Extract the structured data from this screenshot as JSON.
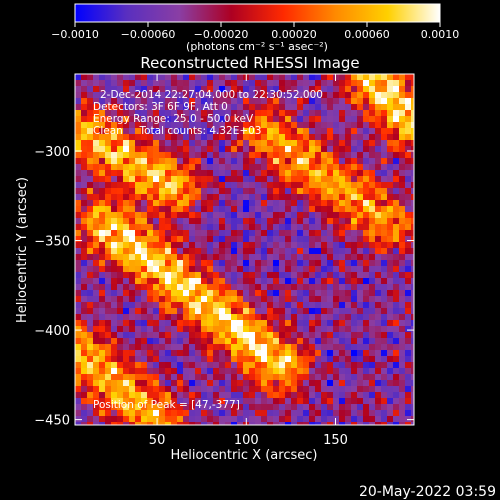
{
  "chart_data": {
    "type": "heatmap",
    "title": "Reconstructed RHESSI Image",
    "xlabel": "Heliocentric X (arcsec)",
    "ylabel": "Heliocentric Y (arcsec)",
    "xlim": [
      4,
      194
    ],
    "ylim": [
      -453,
      -257
    ],
    "xticks": [
      50,
      100,
      150
    ],
    "yticks": [
      -300,
      -350,
      -400,
      -450
    ],
    "grid": false,
    "colorbar": {
      "position": "top",
      "range": [
        -0.001,
        0.001
      ],
      "tick_values": [
        -0.001,
        -0.0006,
        -0.0002,
        0.0002,
        0.0006,
        0.001
      ],
      "tick_labels": [
        "−0.0010",
        "−0.00060",
        "−0.00020",
        "0.00020",
        "0.00060",
        "0.0010"
      ],
      "units_label": "(photons cm⁻² s⁻¹ asec⁻²)",
      "colormap": [
        "#0000ff",
        "#5a2fbf",
        "#8a3ea4",
        "#ad0022",
        "#ff2a00",
        "#ff8a00",
        "#ffd000",
        "#ffffff"
      ]
    },
    "annotations": [
      "2-Dec-2014 22:27:04.000 to 22:30:52.000",
      "Detectors: 3F 6F 9F, Att 0",
      "Energy Range: 25.0 - 50.0 keV",
      "Clean     Total counts: 4.32E+03"
    ],
    "peak_text": "Position of Peak = [47,-377]",
    "peak": [
      47,
      -377
    ],
    "emission_bands": [
      {
        "description": "upper-right diagonal ridge",
        "from": [
          110,
          -290
        ],
        "to": [
          180,
          -340
        ],
        "peak_intensity": 0.0008
      },
      {
        "description": "upper-left ridge",
        "from": [
          10,
          -290
        ],
        "to": [
          60,
          -320
        ],
        "peak_intensity": 0.0009
      },
      {
        "description": "lower-left diagonal ridge",
        "from": [
          20,
          -340
        ],
        "to": [
          120,
          -420
        ],
        "peak_intensity": 0.001
      },
      {
        "description": "top-right corner source",
        "from": [
          170,
          -260
        ],
        "to": [
          194,
          -285
        ],
        "peak_intensity": 0.001
      },
      {
        "description": "bottom-left source",
        "from": [
          4,
          -410
        ],
        "to": [
          50,
          -450
        ],
        "peak_intensity": 0.0009
      }
    ]
  },
  "footer": {
    "timestamp": "20-May-2022 03:59"
  }
}
